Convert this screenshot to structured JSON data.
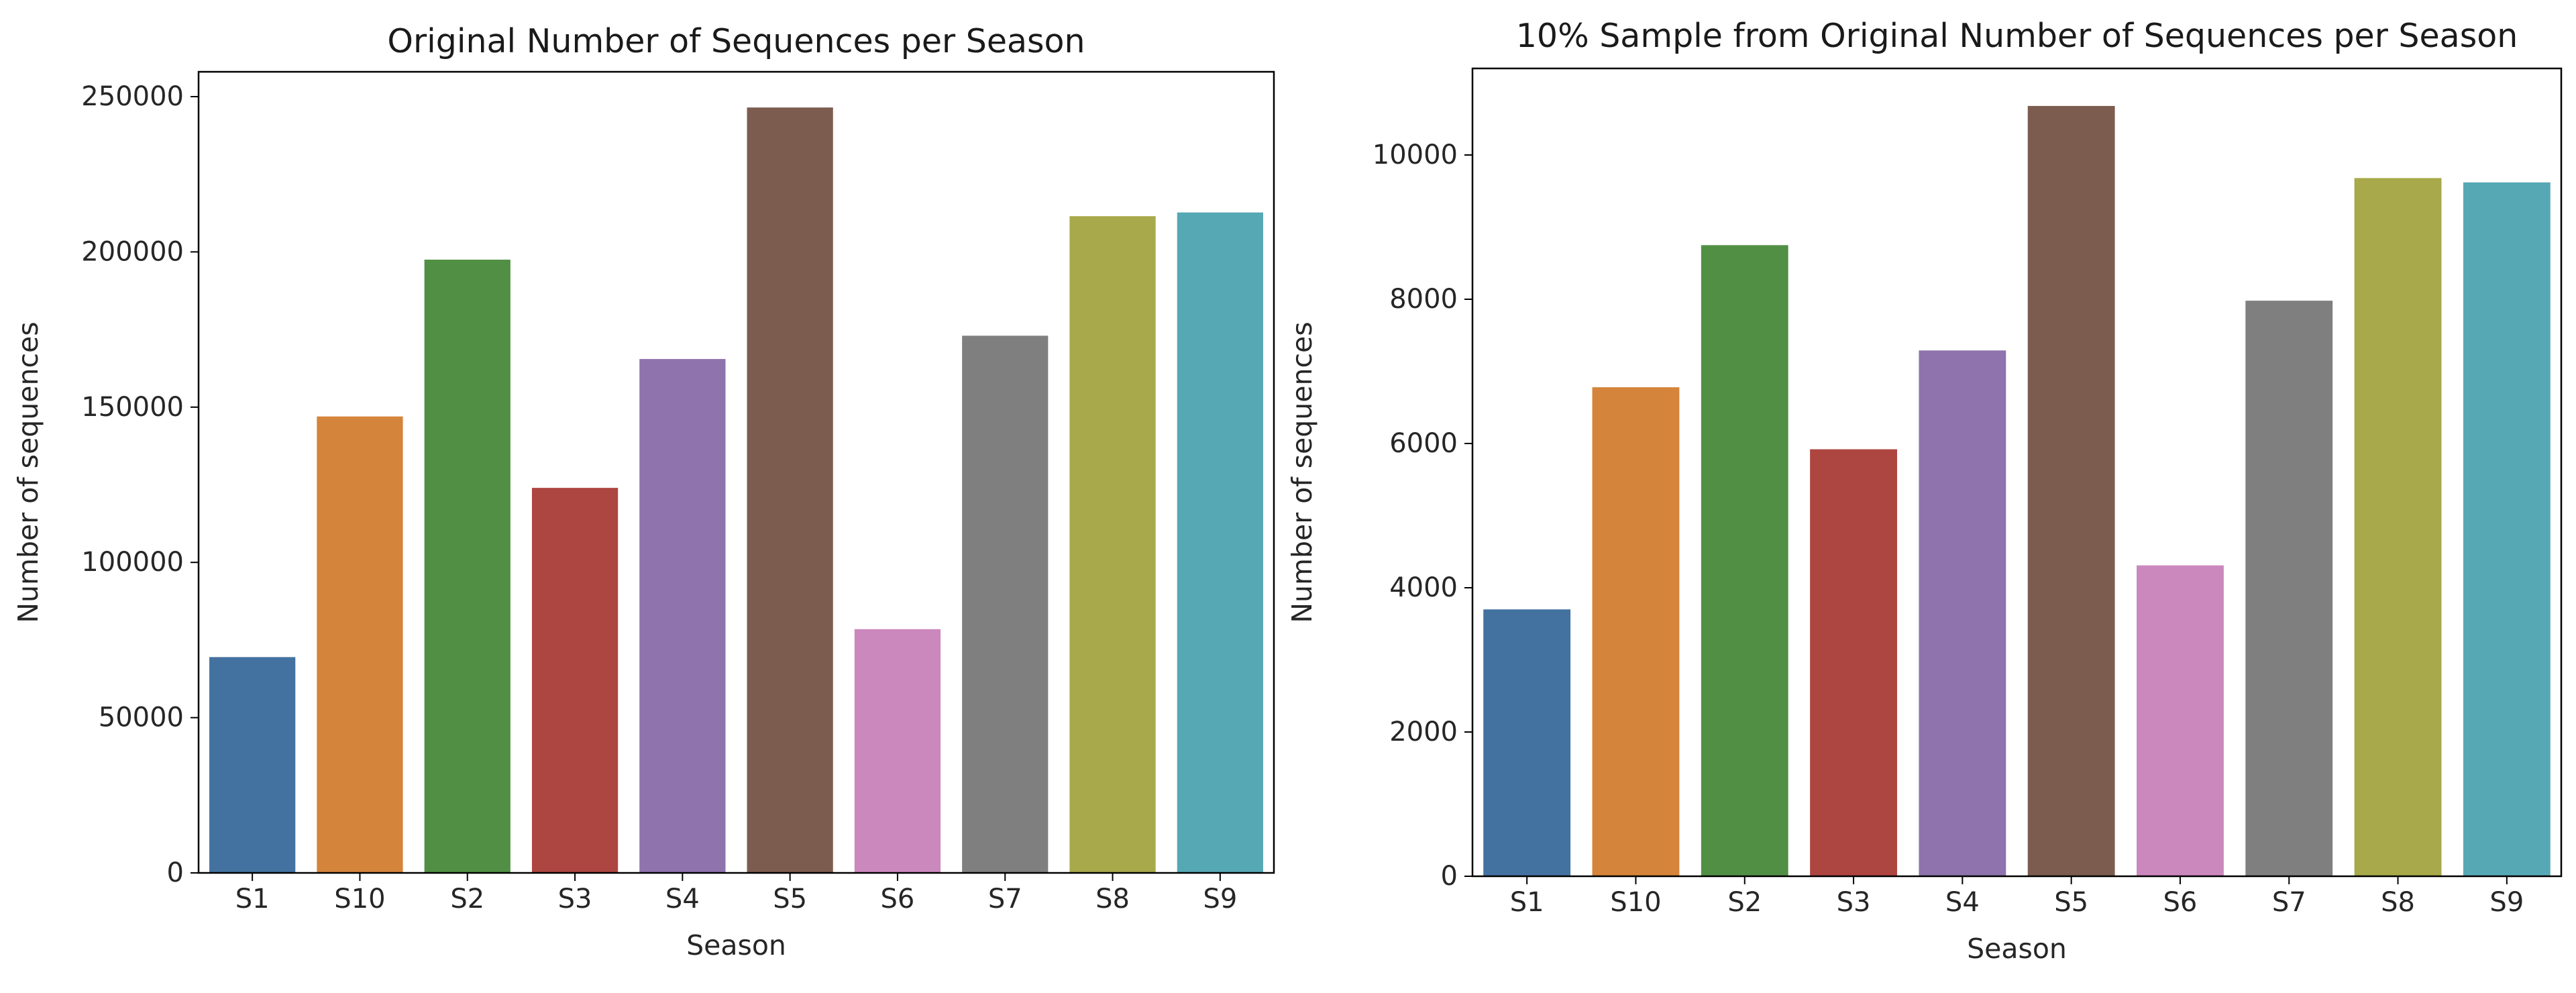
{
  "chart_data": [
    {
      "type": "bar",
      "title": "Original Number of Sequences per Season",
      "xlabel": "Season",
      "ylabel": "Number of sequences",
      "categories": [
        "S1",
        "S10",
        "S2",
        "S3",
        "S4",
        "S5",
        "S6",
        "S7",
        "S8",
        "S9"
      ],
      "values": [
        69500,
        147000,
        197500,
        124000,
        165500,
        246500,
        78500,
        173000,
        211500,
        212700
      ],
      "colors": [
        "#4472a0",
        "#d5843b",
        "#518f44",
        "#ad4541",
        "#8e73ad",
        "#7d5c50",
        "#cb88bd",
        "#7f7f7f",
        "#a7a94a",
        "#56a8b5"
      ],
      "ylim": [
        0,
        258000
      ],
      "yticks": [
        0,
        50000,
        100000,
        150000,
        200000,
        250000
      ],
      "ytick_labels": [
        "0",
        "50000",
        "100000",
        "150000",
        "200000",
        "250000"
      ],
      "grid": false
    },
    {
      "type": "bar",
      "title": "10% Sample from Original Number of Sequences per Season",
      "xlabel": "Season",
      "ylabel": "Number of sequences",
      "categories": [
        "S1",
        "S10",
        "S2",
        "S3",
        "S4",
        "S5",
        "S6",
        "S7",
        "S8",
        "S9"
      ],
      "values": [
        3700,
        6780,
        8750,
        5920,
        7290,
        10680,
        4310,
        7980,
        9680,
        9620
      ],
      "colors": [
        "#4472a0",
        "#d5843b",
        "#518f44",
        "#ad4541",
        "#8e73ad",
        "#7d5c50",
        "#cb88bd",
        "#7f7f7f",
        "#a7a94a",
        "#56a8b5"
      ],
      "ylim": [
        0,
        11200
      ],
      "yticks": [
        0,
        2000,
        4000,
        6000,
        8000,
        10000
      ],
      "ytick_labels": [
        "0",
        "2000",
        "4000",
        "6000",
        "8000",
        "10000"
      ],
      "grid": false
    }
  ]
}
